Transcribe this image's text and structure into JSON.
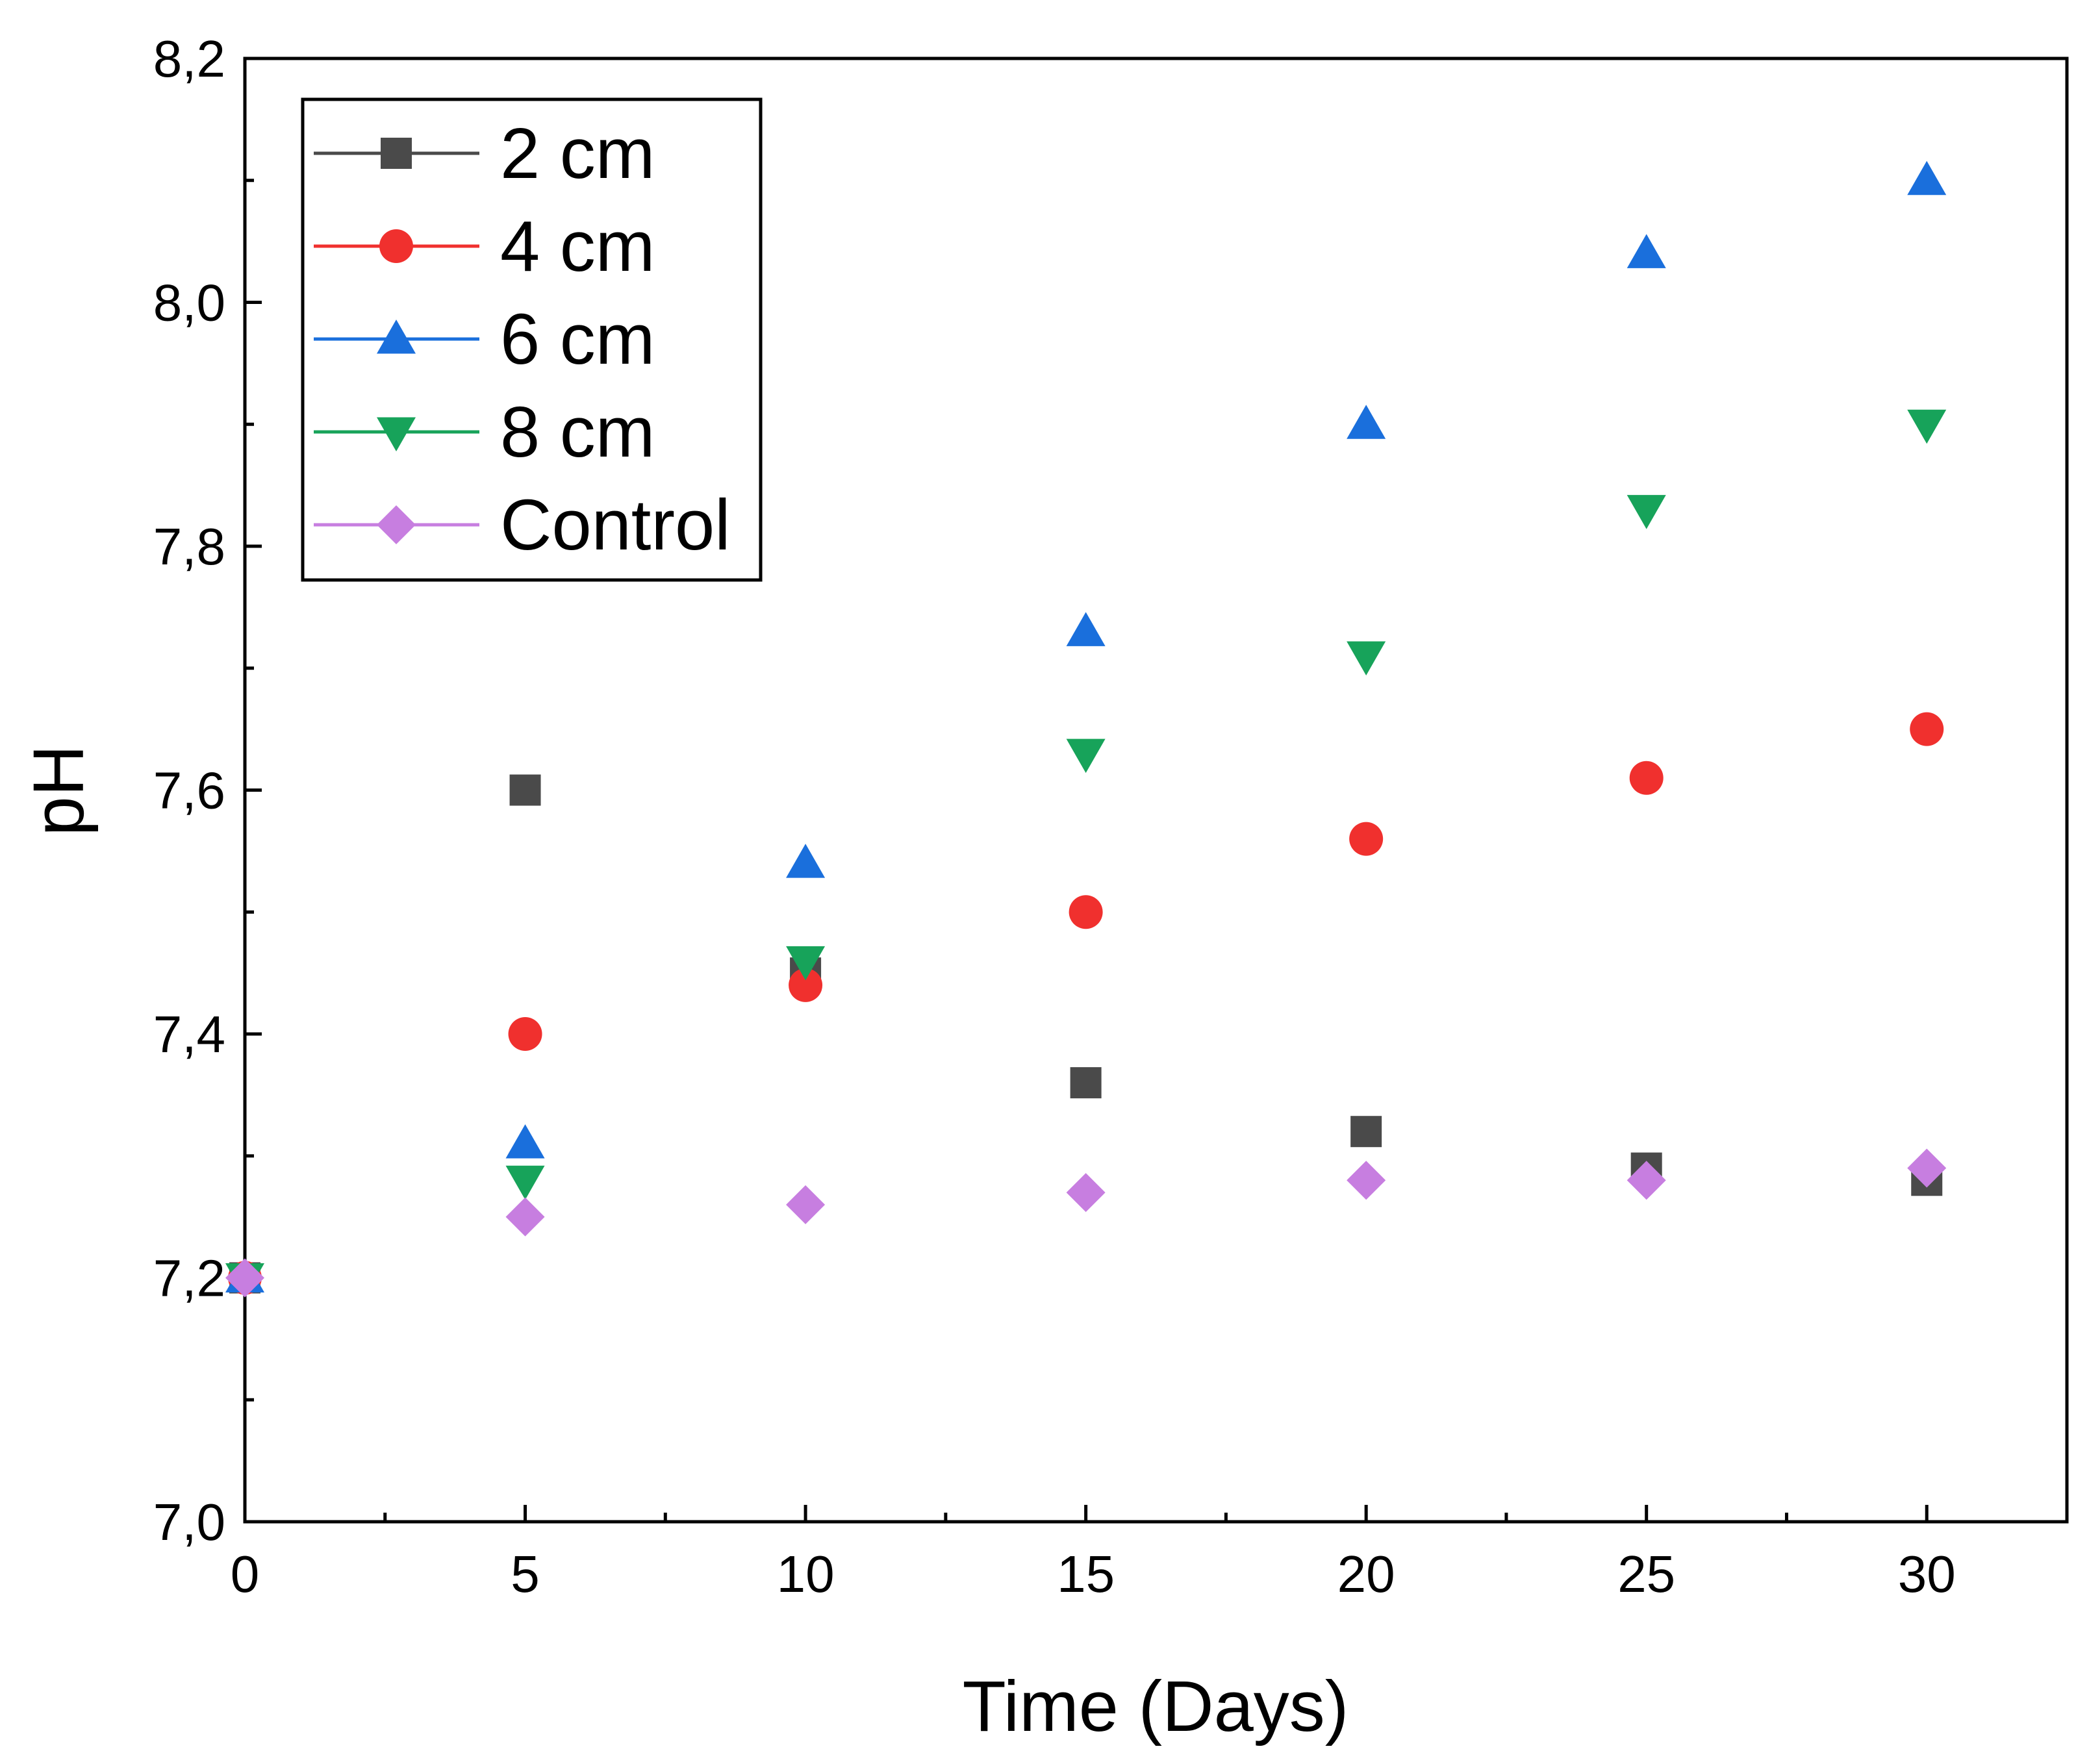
{
  "chart_data": {
    "type": "scatter",
    "title": "",
    "xlabel": "Time (Days)",
    "ylabel": "pH",
    "xlim": [
      0,
      32.5
    ],
    "ylim": [
      7.0,
      8.2
    ],
    "x_ticks": [
      0,
      5,
      10,
      15,
      20,
      25,
      30
    ],
    "x_tick_labels": [
      "0",
      "5",
      "10",
      "15",
      "20",
      "25",
      "30"
    ],
    "y_ticks": [
      7.0,
      7.2,
      7.4,
      7.6,
      7.8,
      8.0,
      8.2
    ],
    "y_tick_labels": [
      "7,0",
      "7,2",
      "7,4",
      "7,6",
      "7,8",
      "8,0",
      "8,2"
    ],
    "grid": false,
    "legend_position": "top-left",
    "x": [
      0,
      5,
      10,
      15,
      20,
      25,
      30
    ],
    "series": [
      {
        "name": "2 cm",
        "marker": "square",
        "color": "#4a4a4a",
        "values": [
          7.2,
          7.6,
          7.45,
          7.36,
          7.32,
          7.29,
          7.28
        ]
      },
      {
        "name": "4 cm",
        "marker": "circle",
        "color": "#f0302e",
        "values": [
          7.2,
          7.4,
          7.44,
          7.5,
          7.56,
          7.61,
          7.65
        ]
      },
      {
        "name": "6 cm",
        "marker": "triangle-up",
        "color": "#1a6fdc",
        "values": [
          7.2,
          7.31,
          7.54,
          7.73,
          7.9,
          8.04,
          8.1
        ]
      },
      {
        "name": "8 cm",
        "marker": "triangle-down",
        "color": "#17a35a",
        "values": [
          7.2,
          7.28,
          7.46,
          7.63,
          7.71,
          7.83,
          7.9
        ]
      },
      {
        "name": "Control",
        "marker": "diamond",
        "color": "#c77ee0",
        "values": [
          7.2,
          7.25,
          7.26,
          7.27,
          7.28,
          7.28,
          7.29
        ]
      }
    ]
  }
}
